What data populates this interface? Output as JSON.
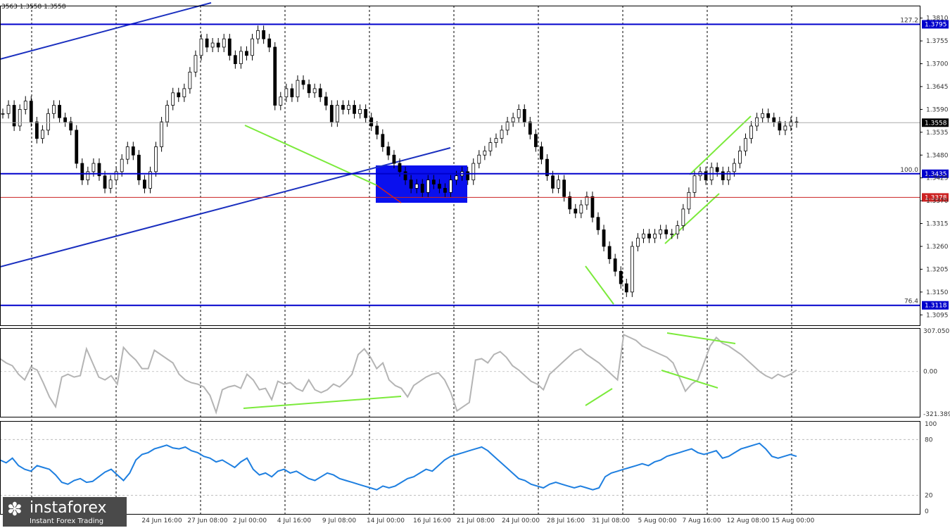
{
  "header": {
    "ohlc": "3563 1.3558 1.3558"
  },
  "logo": {
    "mark": "✽",
    "name": "instaforex",
    "tagline": "Instant Forex Trading"
  },
  "colors": {
    "candle": "#000000",
    "level": "#0000cc",
    "channel": "#1a2fbf",
    "zone": "#0a10ee",
    "divergence": "#7bea3b",
    "cci": "#b4b4b4",
    "rsi": "#1e7fe0",
    "support": "#cc2222",
    "tag": "#0000cc",
    "support_tag": "#cc2222"
  },
  "chart_data": [
    {
      "type": "candlestick",
      "symbol_price_now": 1.3558,
      "ylim": [
        1.307,
        1.384
      ],
      "y_ticks": [
        "1.3810",
        "1.3755",
        "1.3700",
        "1.3645",
        "1.3590",
        "1.3535",
        "1.3480",
        "1.3425",
        "1.3370",
        "1.3315",
        "1.3260",
        "1.3205",
        "1.3150",
        "1.3095"
      ],
      "x_ticks": [
        "24 Jun 16:00",
        "27 Jun 08:00",
        "2 Jul 00:00",
        "4 Jul 16:00",
        "9 Jul 08:00",
        "14 Jul 00:00",
        "16 Jul 16:00",
        "21 Jul 08:00",
        "24 Jul 00:00",
        "28 Jul 16:00",
        "31 Jul 08:00",
        "5 Aug 00:00",
        "7 Aug 16:00",
        "12 Aug 08:00",
        "15 Aug 00:00"
      ],
      "closes": [
        1.358,
        1.36,
        1.355,
        1.359,
        1.361,
        1.356,
        1.352,
        1.354,
        1.358,
        1.36,
        1.357,
        1.356,
        1.354,
        1.346,
        1.342,
        1.344,
        1.346,
        1.343,
        1.34,
        1.342,
        1.344,
        1.347,
        1.35,
        1.348,
        1.342,
        1.34,
        1.344,
        1.35,
        1.356,
        1.36,
        1.363,
        1.362,
        1.364,
        1.368,
        1.372,
        1.376,
        1.374,
        1.375,
        1.374,
        1.376,
        1.372,
        1.37,
        1.373,
        1.372,
        1.376,
        1.378,
        1.376,
        1.374,
        1.36,
        1.362,
        1.364,
        1.362,
        1.366,
        1.365,
        1.363,
        1.364,
        1.362,
        1.36,
        1.356,
        1.36,
        1.359,
        1.36,
        1.358,
        1.359,
        1.357,
        1.355,
        1.353,
        1.35,
        1.348,
        1.346,
        1.344,
        1.342,
        1.34,
        1.341,
        1.339,
        1.342,
        1.341,
        1.34,
        1.339,
        1.342,
        1.343,
        1.344,
        1.342,
        1.346,
        1.348,
        1.349,
        1.351,
        1.352,
        1.354,
        1.356,
        1.357,
        1.359,
        1.356,
        1.353,
        1.35,
        1.347,
        1.343,
        1.34,
        1.342,
        1.338,
        1.335,
        1.334,
        1.336,
        1.338,
        1.333,
        1.33,
        1.326,
        1.323,
        1.32,
        1.317,
        1.315,
        1.326,
        1.328,
        1.329,
        1.328,
        1.329,
        1.33,
        1.329,
        1.329,
        1.331,
        1.335,
        1.339,
        1.343,
        1.344,
        1.342,
        1.345,
        1.344,
        1.342,
        1.344,
        1.346,
        1.349,
        1.352,
        1.355,
        1.357,
        1.358,
        1.357,
        1.356,
        1.354,
        1.355,
        1.356,
        1.3558
      ],
      "levels": [
        {
          "value": 1.3795,
          "label": "1.3795",
          "fib": "127.2"
        },
        {
          "value": 1.3435,
          "label": "1.3435",
          "fib": "100.0"
        },
        {
          "value": 1.3378,
          "label": "1.3378",
          "fib": ""
        },
        {
          "value": 1.3118,
          "label": "1.3118",
          "fib": "76.4"
        }
      ],
      "current_label": "1.3558",
      "zone": {
        "from": 1.3365,
        "to": 1.3455
      },
      "grid": true
    },
    {
      "type": "line",
      "name": "",
      "ylim": [
        -321.3899,
        307.0503
      ],
      "y_ticks": [
        "307.0503",
        "0.00",
        "-321.3899"
      ],
      "values": [
        90,
        60,
        40,
        -20,
        -60,
        30,
        10,
        -80,
        -180,
        -250,
        -40,
        -20,
        -40,
        -30,
        160,
        60,
        -40,
        -60,
        -30,
        -90,
        170,
        120,
        80,
        20,
        20,
        150,
        120,
        90,
        60,
        -20,
        -60,
        -80,
        -90,
        -110,
        -170,
        -290,
        -130,
        -110,
        -100,
        -120,
        -20,
        -60,
        -130,
        -120,
        -200,
        -70,
        -90,
        -80,
        -120,
        -140,
        -60,
        -130,
        -150,
        -130,
        -90,
        -110,
        -70,
        -20,
        120,
        160,
        100,
        20,
        60,
        -60,
        -100,
        -120,
        -180,
        -100,
        -70,
        -40,
        -20,
        -10,
        -60,
        -150,
        -280,
        -250,
        -220,
        80,
        90,
        60,
        120,
        140,
        100,
        40,
        10,
        -30,
        -70,
        -90,
        -130,
        -20,
        20,
        60,
        100,
        140,
        160,
        120,
        90,
        60,
        20,
        -20,
        -60,
        260,
        240,
        220,
        180,
        160,
        140,
        120,
        100,
        60,
        -40,
        -140,
        -90,
        -60,
        60,
        180,
        240,
        200,
        180,
        150,
        120,
        80,
        40,
        0,
        -30,
        -50,
        -20,
        -40,
        -20,
        10
      ],
      "grid": true
    },
    {
      "type": "line",
      "name": "",
      "ylim": [
        0,
        100
      ],
      "y_ticks": [
        "100",
        "80",
        "20",
        "0"
      ],
      "values": [
        58,
        55,
        60,
        52,
        48,
        46,
        52,
        50,
        48,
        42,
        34,
        32,
        36,
        38,
        34,
        35,
        40,
        45,
        48,
        42,
        36,
        44,
        58,
        64,
        66,
        70,
        72,
        74,
        71,
        70,
        72,
        68,
        66,
        62,
        60,
        56,
        58,
        54,
        50,
        56,
        60,
        48,
        42,
        44,
        40,
        46,
        48,
        44,
        46,
        42,
        38,
        36,
        40,
        44,
        42,
        38,
        36,
        34,
        32,
        30,
        28,
        26,
        30,
        28,
        30,
        34,
        38,
        40,
        44,
        48,
        46,
        52,
        58,
        62,
        64,
        66,
        68,
        70,
        72,
        68,
        62,
        56,
        50,
        44,
        38,
        36,
        32,
        30,
        28,
        32,
        34,
        32,
        30,
        28,
        30,
        28,
        26,
        28,
        40,
        44,
        46,
        48,
        50,
        52,
        54,
        52,
        56,
        58,
        62,
        64,
        66,
        68,
        70,
        66,
        64,
        66,
        68,
        60,
        62,
        66,
        70,
        72,
        74,
        76,
        70,
        62,
        60,
        62,
        64,
        62
      ],
      "grid": true
    }
  ]
}
